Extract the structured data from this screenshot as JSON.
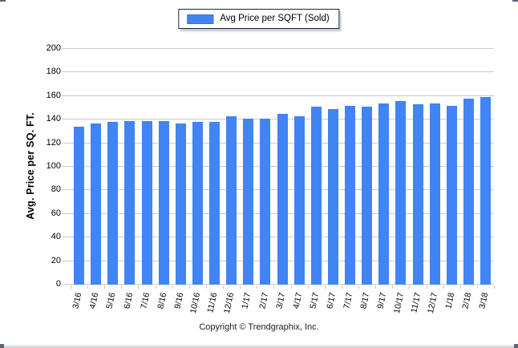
{
  "legend": {
    "label": "Avg Price per SQFT (Sold)",
    "swatch_color": "#4184F3"
  },
  "footer": {
    "copyright": "Copyright © Trendgraphix, Inc."
  },
  "chart_data": {
    "type": "bar",
    "title": "Avg Price per SQFT (Sold)",
    "ylabel": "Avg. Price per SQ. FT.",
    "xlabel": "",
    "ylim": [
      0,
      200
    ],
    "ytick_step": 20,
    "ytick_labels": [
      "0",
      "20",
      "40",
      "60",
      "80",
      "100",
      "120",
      "140",
      "160",
      "180",
      "200"
    ],
    "grid": true,
    "legend_position": "top-center",
    "bar_color": "#4184F3",
    "grid_color": "#cbcbcb",
    "categories": [
      "3/16",
      "4/16",
      "5/16",
      "6/16",
      "7/16",
      "8/16",
      "9/16",
      "10/16",
      "11/16",
      "12/16",
      "1/17",
      "2/17",
      "3/17",
      "4/17",
      "5/17",
      "6/17",
      "7/17",
      "8/17",
      "9/17",
      "10/17",
      "11/17",
      "12/17",
      "1/18",
      "2/18",
      "3/18"
    ],
    "values": [
      134,
      137,
      138,
      139,
      139,
      139,
      137,
      138,
      138,
      143,
      141,
      141,
      145,
      143,
      151,
      149,
      152,
      151,
      154,
      156,
      153,
      154,
      152,
      158,
      159
    ]
  }
}
